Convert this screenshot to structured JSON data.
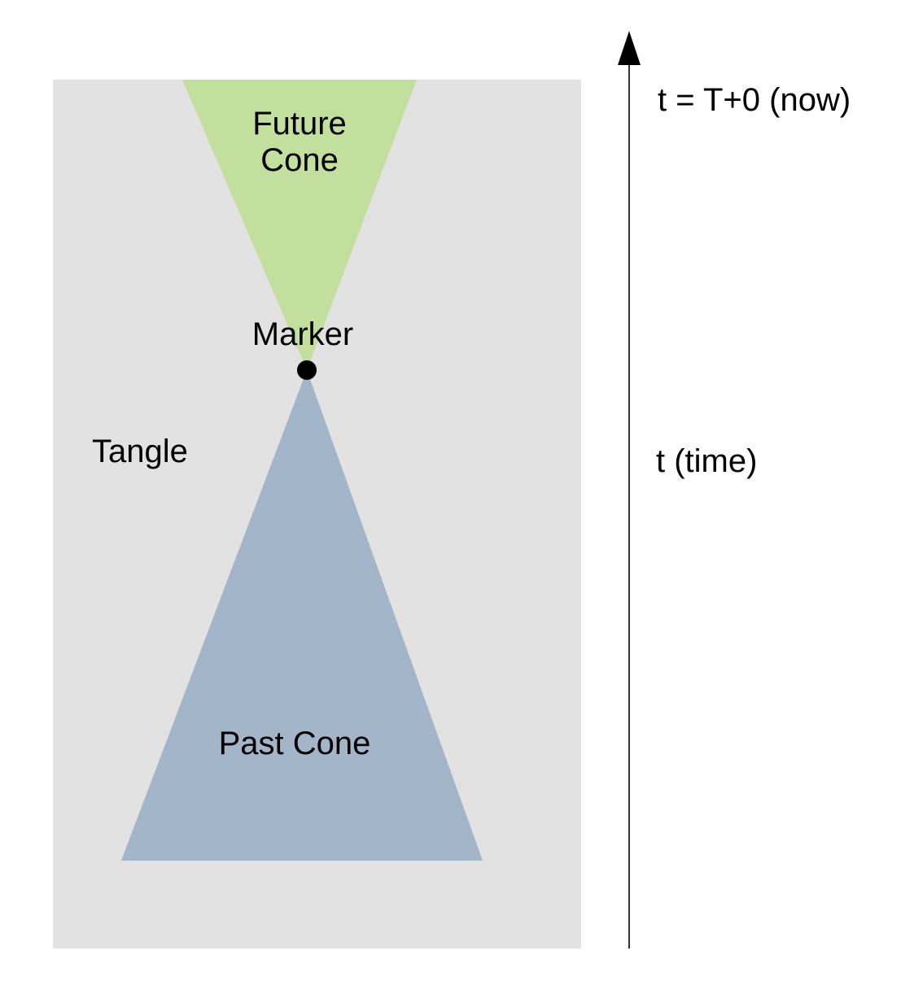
{
  "labels": {
    "future_cone_line1": "Future",
    "future_cone_line2": "Cone",
    "marker": "Marker",
    "tangle": "Tangle",
    "past_cone": "Past Cone",
    "now": "t = T+0 (now)",
    "time_axis": "t (time)"
  },
  "colors": {
    "tangle_region": "#e2e2e2",
    "future_cone": "#c3df9e",
    "past_cone": "#a3b5c9",
    "marker": "#000000",
    "axis": "#333333"
  },
  "icons": {
    "axis_arrowhead": "arrow-up-icon",
    "marker_dot": "filled-circle-icon"
  }
}
